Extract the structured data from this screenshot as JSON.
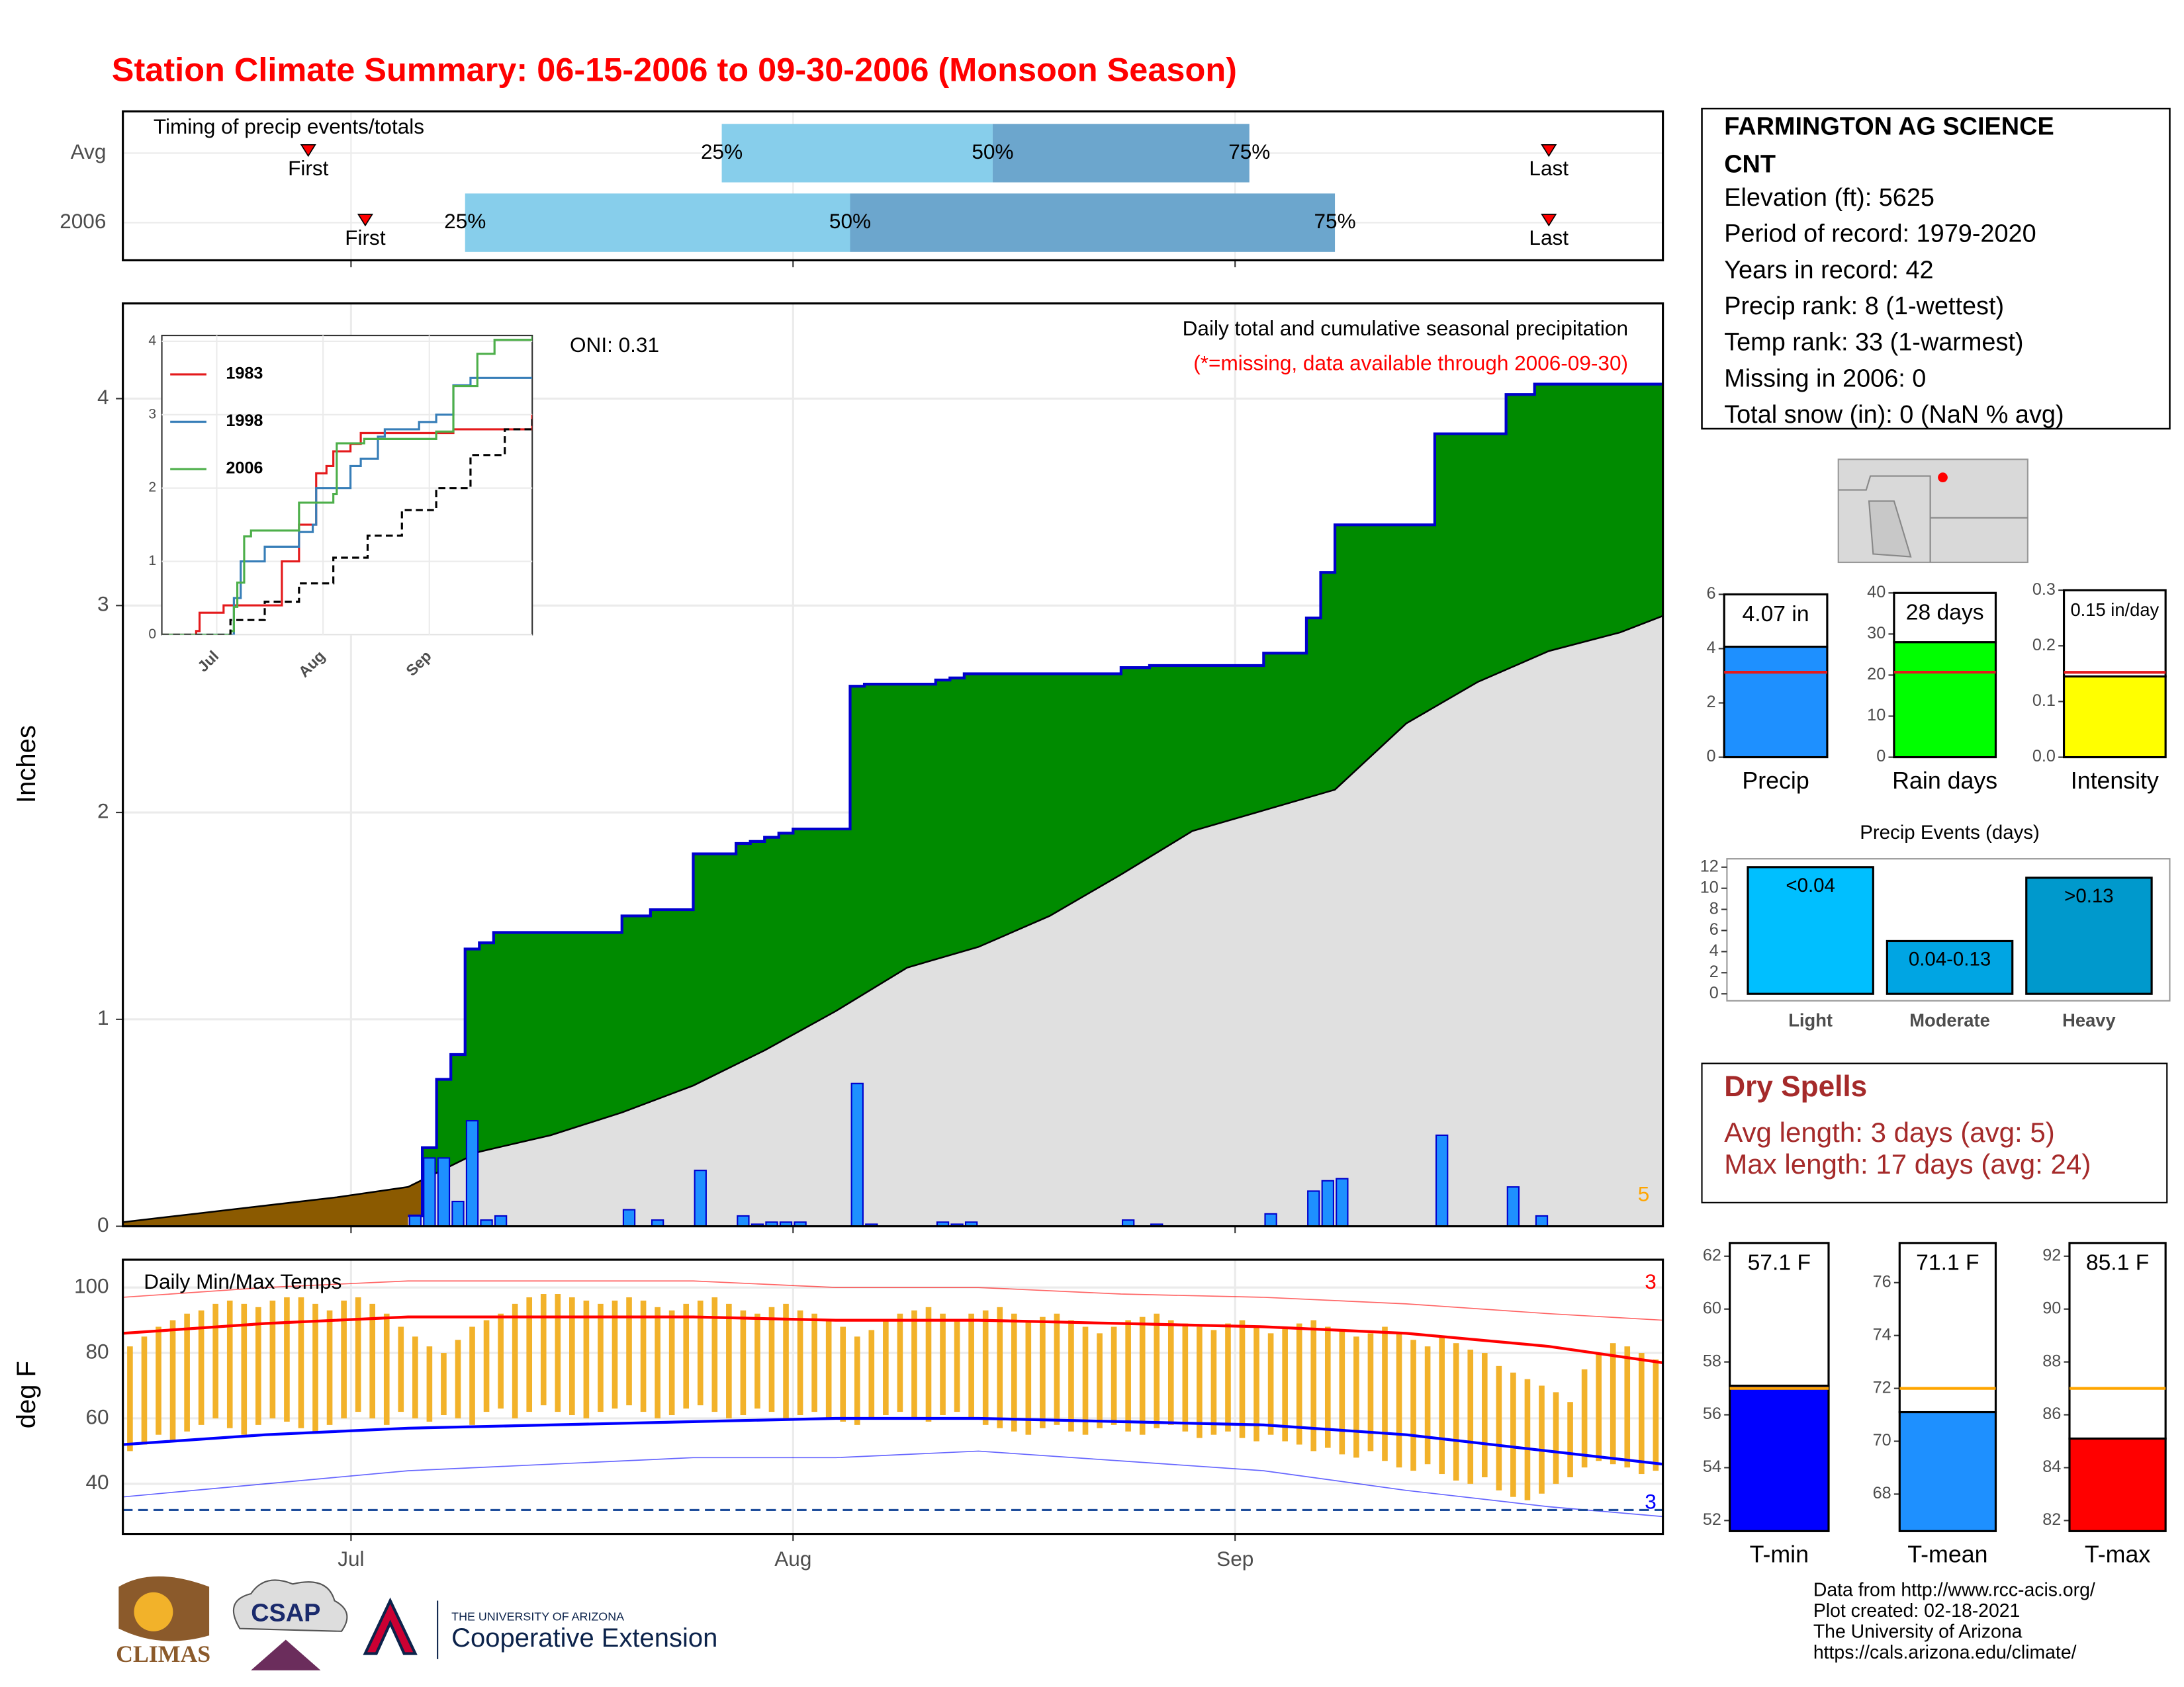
{
  "title": "Station Climate Summary: 06-15-2006 to 09-30-2006 (Monsoon Season)",
  "info": {
    "station": [
      "FARMINGTON AG SCIENCE",
      "CNT"
    ],
    "lines": [
      "Elevation (ft): 5625",
      "Period of record: 1979-2020",
      "Years in record: 42",
      "Precip rank: 8 (1-wettest)",
      "Temp rank: 33 (1-warmest)",
      "Missing in 2006: 0",
      "Total snow (in): 0 (NaN % avg)"
    ]
  },
  "dry_spells": {
    "title": "Dry Spells",
    "lines": [
      "Avg length: 3 days (avg: 5)",
      "Max length: 17 days (avg: 24)"
    ]
  },
  "footer": [
    "Data from http://www.rcc-acis.org/",
    "Plot created: 02-18-2021",
    "The University of Arizona",
    "https://cals.arizona.edu/climate/"
  ],
  "logos": {
    "climas": "CLIMAS",
    "csap": "CSAP",
    "university": "THE UNIVERSITY OF ARIZONA",
    "extension": "Cooperative Extension"
  },
  "chart_data": [
    {
      "type": "timing",
      "title": "Timing of precip events/totals",
      "xlim": [
        0,
        108
      ],
      "xticks": [
        16,
        47,
        78
      ],
      "first_label": "First",
      "last_label": "Last",
      "quantile_labels": [
        "25%",
        "50%",
        "75%"
      ],
      "colors": [
        "#87ceeb",
        "#6ca6cd"
      ],
      "rows": [
        {
          "name": "Avg",
          "first": 13,
          "q25": 42,
          "q50": 61,
          "q75": 79,
          "last": 100
        },
        {
          "name": "2006",
          "first": 17,
          "q25": 24,
          "q50": 51,
          "q75": 85,
          "last": 100
        }
      ]
    },
    {
      "type": "precip",
      "ylabel": "Inches",
      "oni": "ONI: 0.31",
      "subtitle": "Daily total and cumulative seasonal precipitation",
      "note": "(*=missing, data available through 2006-09-30)",
      "record_label": "5",
      "xlim": [
        0,
        108
      ],
      "xticks": [
        16,
        47,
        78
      ],
      "ylim": [
        0,
        4.46
      ],
      "yticks": [
        0,
        1,
        2,
        3,
        4
      ],
      "grid": true,
      "colors": {
        "bar": "#1e90ff",
        "above": "#008b00",
        "below": "#8b5a00",
        "avg_area": "#e0e0e0",
        "line": "#0000cd"
      },
      "daily": [
        0,
        0,
        0,
        0,
        0,
        0,
        0,
        0,
        0,
        0,
        0,
        0,
        0,
        0,
        0,
        0,
        0,
        0,
        0,
        0,
        0.05,
        0.33,
        0.33,
        0.12,
        0.51,
        0.03,
        0.05,
        0,
        0,
        0,
        0,
        0,
        0,
        0,
        0,
        0.08,
        0,
        0.03,
        0,
        0,
        0.27,
        0,
        0,
        0.05,
        0.01,
        0.02,
        0.02,
        0.02,
        0,
        0,
        0,
        0.69,
        0.01,
        0,
        0,
        0,
        0,
        0.02,
        0.01,
        0.02,
        0,
        0,
        0,
        0,
        0,
        0,
        0,
        0,
        0,
        0,
        0.03,
        0,
        0.01,
        0,
        0,
        0,
        0,
        0,
        0,
        0,
        0.06,
        0,
        0,
        0.17,
        0.22,
        0.23,
        0,
        0,
        0,
        0,
        0,
        0,
        0.44,
        0,
        0,
        0,
        0,
        0.19,
        0,
        0.05,
        0,
        0,
        0,
        0,
        0,
        0,
        0,
        0
      ],
      "avg_cumulative": {
        "x": [
          0,
          5,
          10,
          15,
          20,
          25,
          30,
          35,
          40,
          45,
          50,
          55,
          60,
          65,
          70,
          75,
          80,
          85,
          90,
          95,
          100,
          105,
          108
        ],
        "values": [
          0.02,
          0.06,
          0.1,
          0.14,
          0.19,
          0.36,
          0.44,
          0.55,
          0.68,
          0.85,
          1.04,
          1.25,
          1.35,
          1.5,
          1.7,
          1.91,
          2.01,
          2.11,
          2.43,
          2.63,
          2.78,
          2.87,
          2.95
        ]
      }
    },
    {
      "type": "step_lines",
      "xlim": [
        0,
        108
      ],
      "xticks": [
        {
          "value": 16,
          "label": "Jul"
        },
        {
          "value": 47,
          "label": "Aug"
        },
        {
          "value": 78,
          "label": "Sep"
        }
      ],
      "ylim": [
        0,
        4.08
      ],
      "yticks": [
        0,
        1,
        2,
        3,
        4
      ],
      "series": [
        {
          "name": "1983",
          "color": "#e41a1c",
          "x": [
            0,
            10,
            11,
            17,
            18,
            30,
            35,
            40,
            42,
            45,
            48,
            50,
            55,
            58,
            80,
            85,
            100,
            108
          ],
          "values": [
            0,
            0.05,
            0.3,
            0.3,
            0.4,
            0.4,
            1.0,
            1.5,
            1.5,
            2.2,
            2.3,
            2.5,
            2.6,
            2.75,
            2.75,
            2.8,
            2.8,
            3.0
          ]
        },
        {
          "name": "1998",
          "color": "#377eb8",
          "x": [
            0,
            20,
            21,
            23,
            30,
            40,
            44,
            45,
            55,
            58,
            63,
            65,
            70,
            75,
            80,
            85,
            90,
            108
          ],
          "values": [
            0,
            0,
            0.5,
            1.0,
            1.2,
            1.4,
            1.5,
            2.0,
            2.3,
            2.4,
            2.7,
            2.8,
            2.8,
            2.9,
            3.0,
            3.4,
            3.5,
            3.5
          ]
        },
        {
          "name": "2006",
          "color": "#4daf4a",
          "x": [
            0,
            20,
            21,
            22,
            24,
            26,
            40,
            50,
            51,
            59,
            80,
            85,
            92,
            97,
            108
          ],
          "values": [
            0,
            0.05,
            0.38,
            0.71,
            1.34,
            1.42,
            1.8,
            1.92,
            2.61,
            2.67,
            2.77,
            3.39,
            3.83,
            4.02,
            4.07
          ]
        },
        {
          "color": "#000000",
          "dash": true,
          "x": [
            0,
            20,
            30,
            40,
            50,
            60,
            70,
            80,
            90,
            100,
            108
          ],
          "values": [
            0,
            0.2,
            0.45,
            0.7,
            1.05,
            1.35,
            1.7,
            2.0,
            2.45,
            2.8,
            2.95
          ]
        }
      ]
    },
    {
      "type": "temps",
      "title": "Daily Min/Max Temps",
      "ylabel": "deg F",
      "xlim": [
        0,
        108
      ],
      "xticks": [
        {
          "value": 16,
          "label": "Jul"
        },
        {
          "value": 47,
          "label": "Aug"
        },
        {
          "value": 78,
          "label": "Sep"
        }
      ],
      "ylim": [
        24.7,
        108.5
      ],
      "yticks": [
        40,
        60,
        80,
        100
      ],
      "grid": true,
      "freeze": 32,
      "count_labels": [
        "3",
        "3"
      ],
      "colors": {
        "bar": "#f2b22a",
        "max": "#ff0000",
        "min": "#0000ff",
        "freeze": "#1f4e9c"
      },
      "tmax": [
        82,
        85,
        88,
        90,
        92,
        93,
        95,
        96,
        95,
        94,
        96,
        97,
        97,
        95,
        93,
        96,
        97,
        95,
        92,
        88,
        85,
        82,
        80,
        84,
        88,
        90,
        92,
        95,
        97,
        98,
        98,
        97,
        96,
        95,
        96,
        97,
        96,
        94,
        93,
        95,
        96,
        97,
        95,
        93,
        92,
        94,
        95,
        93,
        92,
        90,
        88,
        85,
        87,
        90,
        92,
        93,
        94,
        92,
        90,
        92,
        93,
        94,
        92,
        90,
        91,
        92,
        90,
        88,
        86,
        88,
        90,
        91,
        92,
        90,
        89,
        88,
        87,
        89,
        90,
        88,
        86,
        88,
        89,
        90,
        88,
        87,
        85,
        86,
        88,
        86,
        84,
        82,
        85,
        83,
        81,
        80,
        76,
        74,
        72,
        70,
        68,
        65,
        75,
        80,
        83,
        82,
        80,
        78
      ],
      "tmin": [
        50,
        52,
        55,
        53,
        56,
        58,
        60,
        57,
        55,
        58,
        60,
        59,
        57,
        56,
        58,
        60,
        62,
        60,
        58,
        62,
        60,
        59,
        61,
        60,
        58,
        62,
        63,
        60,
        62,
        64,
        62,
        61,
        60,
        62,
        63,
        64,
        62,
        60,
        61,
        63,
        64,
        62,
        60,
        61,
        63,
        62,
        60,
        61,
        62,
        60,
        59,
        58,
        60,
        61,
        62,
        60,
        59,
        61,
        62,
        60,
        58,
        57,
        56,
        55,
        57,
        58,
        56,
        55,
        57,
        58,
        56,
        55,
        57,
        58,
        56,
        54,
        55,
        56,
        54,
        53,
        55,
        53,
        52,
        50,
        51,
        49,
        48,
        50,
        47,
        45,
        44,
        46,
        43,
        41,
        40,
        42,
        38,
        36,
        35,
        37,
        40,
        42,
        45,
        47,
        46,
        45,
        43,
        44
      ],
      "avg_max": {
        "x": [
          0,
          10,
          20,
          30,
          40,
          50,
          60,
          70,
          80,
          90,
          100,
          108
        ],
        "values": [
          86,
          89,
          91,
          91,
          91,
          90,
          90,
          89,
          88,
          86,
          82,
          77
        ]
      },
      "avg_min": {
        "x": [
          0,
          10,
          20,
          30,
          40,
          50,
          60,
          70,
          80,
          90,
          100,
          108
        ],
        "values": [
          52,
          55,
          57,
          58,
          59,
          60,
          60,
          59,
          58,
          55,
          50,
          46
        ]
      },
      "rec_max": {
        "x": [
          0,
          10,
          20,
          30,
          40,
          50,
          60,
          70,
          80,
          90,
          100,
          108
        ],
        "values": [
          97,
          100,
          102,
          102,
          102,
          100,
          100,
          98,
          97,
          95,
          92,
          90
        ]
      },
      "rec_min": {
        "x": [
          0,
          10,
          20,
          30,
          40,
          50,
          60,
          70,
          80,
          90,
          100,
          108
        ],
        "values": [
          36,
          40,
          44,
          46,
          48,
          48,
          50,
          47,
          44,
          38,
          33,
          30
        ]
      }
    },
    {
      "type": "bar",
      "categories": [
        "Precip"
      ],
      "values": [
        4.07
      ],
      "value_labels": [
        "4.07 in"
      ],
      "avg": [
        3.13
      ],
      "avg_color": "#e41a1c",
      "color": "#1e90ff",
      "ylim": [
        0,
        6
      ],
      "yticks": [
        0,
        2,
        4,
        6
      ]
    },
    {
      "type": "bar",
      "categories": [
        "Rain days"
      ],
      "values": [
        28
      ],
      "value_labels": [
        "28 days"
      ],
      "avg": [
        20.7
      ],
      "avg_color": "#e41a1c",
      "color": "#00ff00",
      "ylim": [
        0,
        40
      ],
      "yticks": [
        0,
        10,
        20,
        30,
        40
      ]
    },
    {
      "type": "bar",
      "categories": [
        "Intensity"
      ],
      "values": [
        0.145
      ],
      "value_labels": [
        "0.15 in/day"
      ],
      "avg": [
        0.1525
      ],
      "avg_color": "#e41a1c",
      "color": "#ffff00",
      "ylim": [
        0,
        0.3
      ],
      "yticks": [
        {
          "value": 0,
          "label": "0.0"
        },
        0.1,
        0.2,
        0.3
      ]
    },
    {
      "type": "bar",
      "title": "Precip Events (days)",
      "categories": [
        "Light",
        "Moderate",
        "Heavy"
      ],
      "values": [
        12,
        5,
        11
      ],
      "value_labels": [
        "<0.04",
        "0.04-0.13",
        ">0.13"
      ],
      "colors": [
        "#00bfff",
        "#00a5e3",
        "#0099cc"
      ],
      "ylim": [
        0,
        12
      ],
      "yticks": [
        0,
        2,
        4,
        6,
        8,
        10,
        12
      ]
    },
    {
      "type": "bar",
      "categories": [
        "T-min"
      ],
      "values": [
        57.1
      ],
      "value_labels": [
        "57.1 F"
      ],
      "avg": [
        57.0
      ],
      "avg_color": "#ffa500",
      "color": "#0000ff",
      "ylim": [
        51.6,
        62.5
      ],
      "yticks": [
        52,
        54,
        56,
        58,
        60,
        62
      ]
    },
    {
      "type": "bar",
      "categories": [
        "T-mean"
      ],
      "values": [
        71.1
      ],
      "value_labels": [
        "71.1 F"
      ],
      "avg": [
        72.0
      ],
      "avg_color": "#ffa500",
      "color": "#1e90ff",
      "ylim": [
        66.6,
        77.5
      ],
      "yticks": [
        68,
        70,
        72,
        74,
        76
      ]
    },
    {
      "type": "bar",
      "categories": [
        "T-max"
      ],
      "values": [
        85.1
      ],
      "value_labels": [
        "85.1 F"
      ],
      "avg": [
        87.0
      ],
      "avg_color": "#ffa500",
      "color": "#ff0000",
      "ylim": [
        81.6,
        92.5
      ],
      "yticks": [
        82,
        84,
        86,
        88,
        90,
        92
      ]
    }
  ]
}
